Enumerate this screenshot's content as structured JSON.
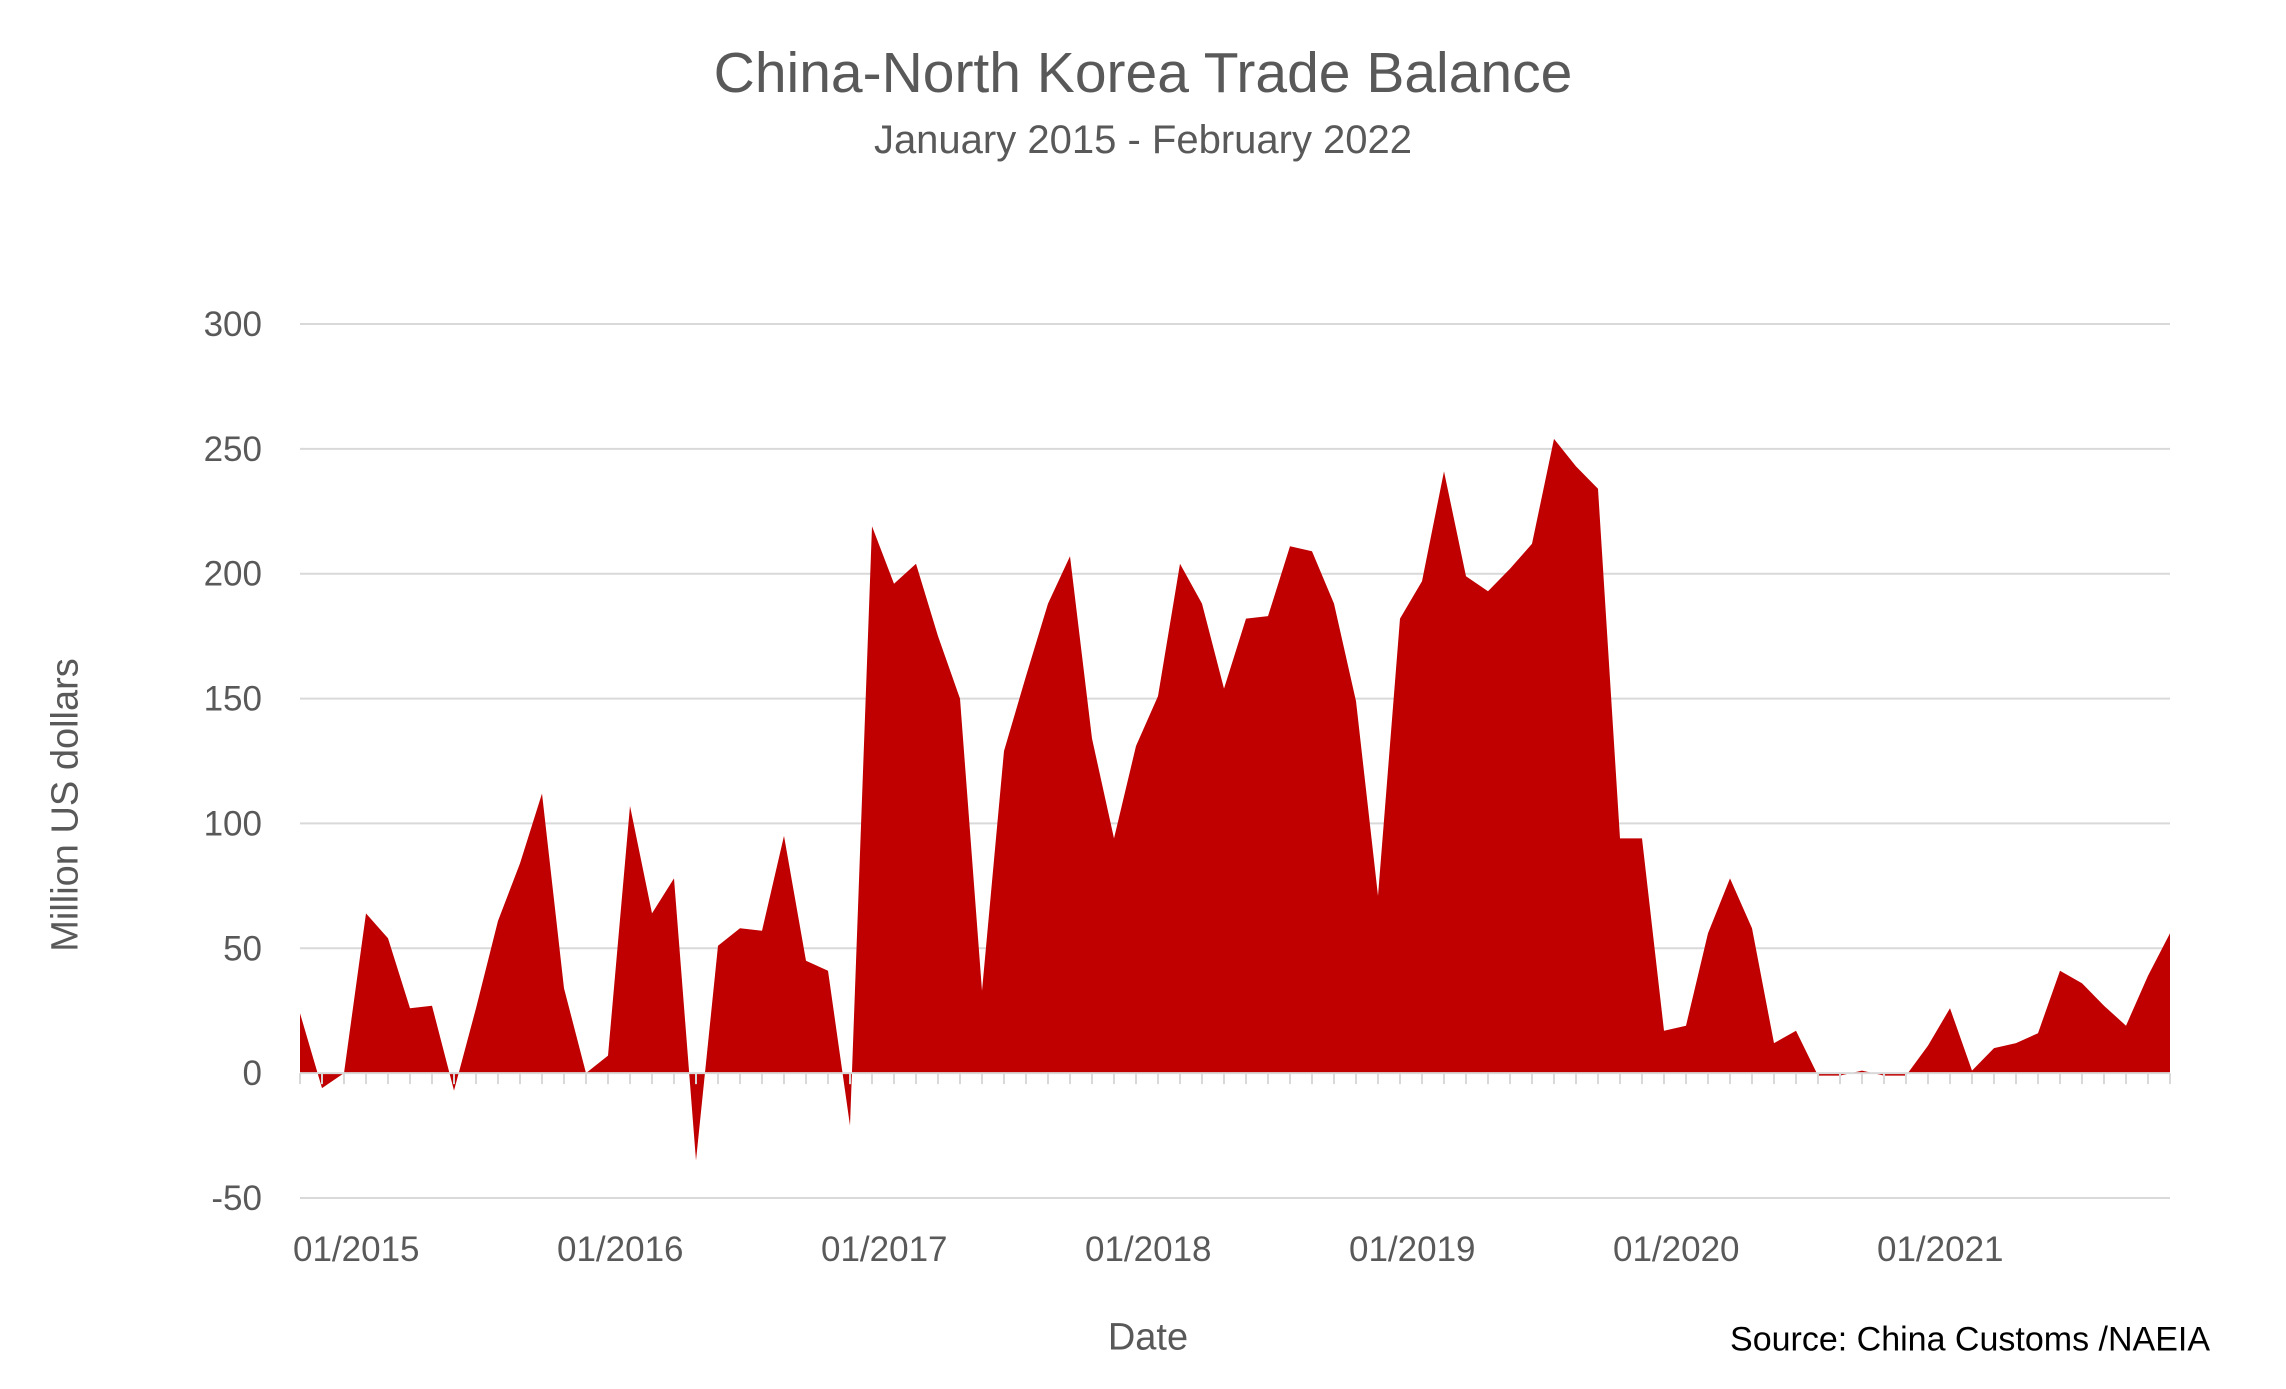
{
  "chart_data": {
    "type": "area",
    "title": "China-North Korea Trade Balance",
    "subtitle": "January 2015 - February 2022",
    "xlabel": "Date",
    "ylabel": "Million US dollars",
    "source": "Source: China Customs /NAEIA",
    "ylim": [
      -50,
      300
    ],
    "yticks": [
      -50,
      0,
      50,
      100,
      150,
      200,
      250,
      300
    ],
    "grid": true,
    "legend": "none",
    "colors": {
      "area": "#c00000",
      "grid": "#d9d9d9",
      "text": "#595959"
    },
    "x_tick_labels": [
      "01/2015",
      "01/2016",
      "01/2017",
      "01/2018",
      "01/2019",
      "01/2020",
      "01/2021"
    ],
    "x": [
      "01/2015",
      "02/2015",
      "03/2015",
      "04/2015",
      "05/2015",
      "06/2015",
      "07/2015",
      "08/2015",
      "09/2015",
      "10/2015",
      "11/2015",
      "12/2015",
      "01/2016",
      "02/2016",
      "03/2016",
      "04/2016",
      "05/2016",
      "06/2016",
      "07/2016",
      "08/2016",
      "09/2016",
      "10/2016",
      "11/2016",
      "12/2016",
      "01/2017",
      "02/2017",
      "03/2017",
      "04/2017",
      "05/2017",
      "06/2017",
      "07/2017",
      "08/2017",
      "09/2017",
      "10/2017",
      "11/2017",
      "12/2017",
      "01/2018",
      "02/2018",
      "03/2018",
      "04/2018",
      "05/2018",
      "06/2018",
      "07/2018",
      "08/2018",
      "09/2018",
      "10/2018",
      "11/2018",
      "12/2018",
      "01/2019",
      "02/2019",
      "03/2019",
      "04/2019",
      "05/2019",
      "06/2019",
      "07/2019",
      "08/2019",
      "09/2019",
      "10/2019",
      "11/2019",
      "12/2019",
      "01/2020",
      "02/2020",
      "03/2020",
      "04/2020",
      "05/2020",
      "06/2020",
      "07/2020",
      "08/2020",
      "09/2020",
      "10/2020",
      "11/2020",
      "12/2020",
      "01/2021",
      "02/2021",
      "03/2021",
      "04/2021",
      "05/2021",
      "06/2021",
      "07/2021",
      "08/2021",
      "09/2021",
      "10/2021",
      "11/2021",
      "12/2021",
      "01/2022",
      "02/2022"
    ],
    "series": [
      {
        "values": [
          24,
          -6,
          0,
          64,
          54,
          26,
          27,
          -7,
          26,
          61,
          84,
          112,
          34,
          0,
          7,
          107,
          64,
          78,
          -35,
          51,
          58,
          57,
          95,
          45,
          41,
          -21,
          219,
          196,
          204,
          175,
          150,
          33,
          129,
          159,
          188,
          207,
          134,
          94,
          131,
          151,
          204,
          188,
          154,
          182,
          183,
          211,
          209,
          188,
          149,
          71,
          182,
          197,
          241,
          199,
          193,
          202,
          212,
          254,
          243,
          234,
          94,
          94,
          17,
          19,
          56,
          78,
          58,
          12,
          17,
          -1,
          -1,
          1,
          -1,
          -1,
          11,
          26,
          1,
          10,
          12,
          16,
          41,
          36,
          27,
          19,
          39,
          56
        ]
      }
    ]
  }
}
